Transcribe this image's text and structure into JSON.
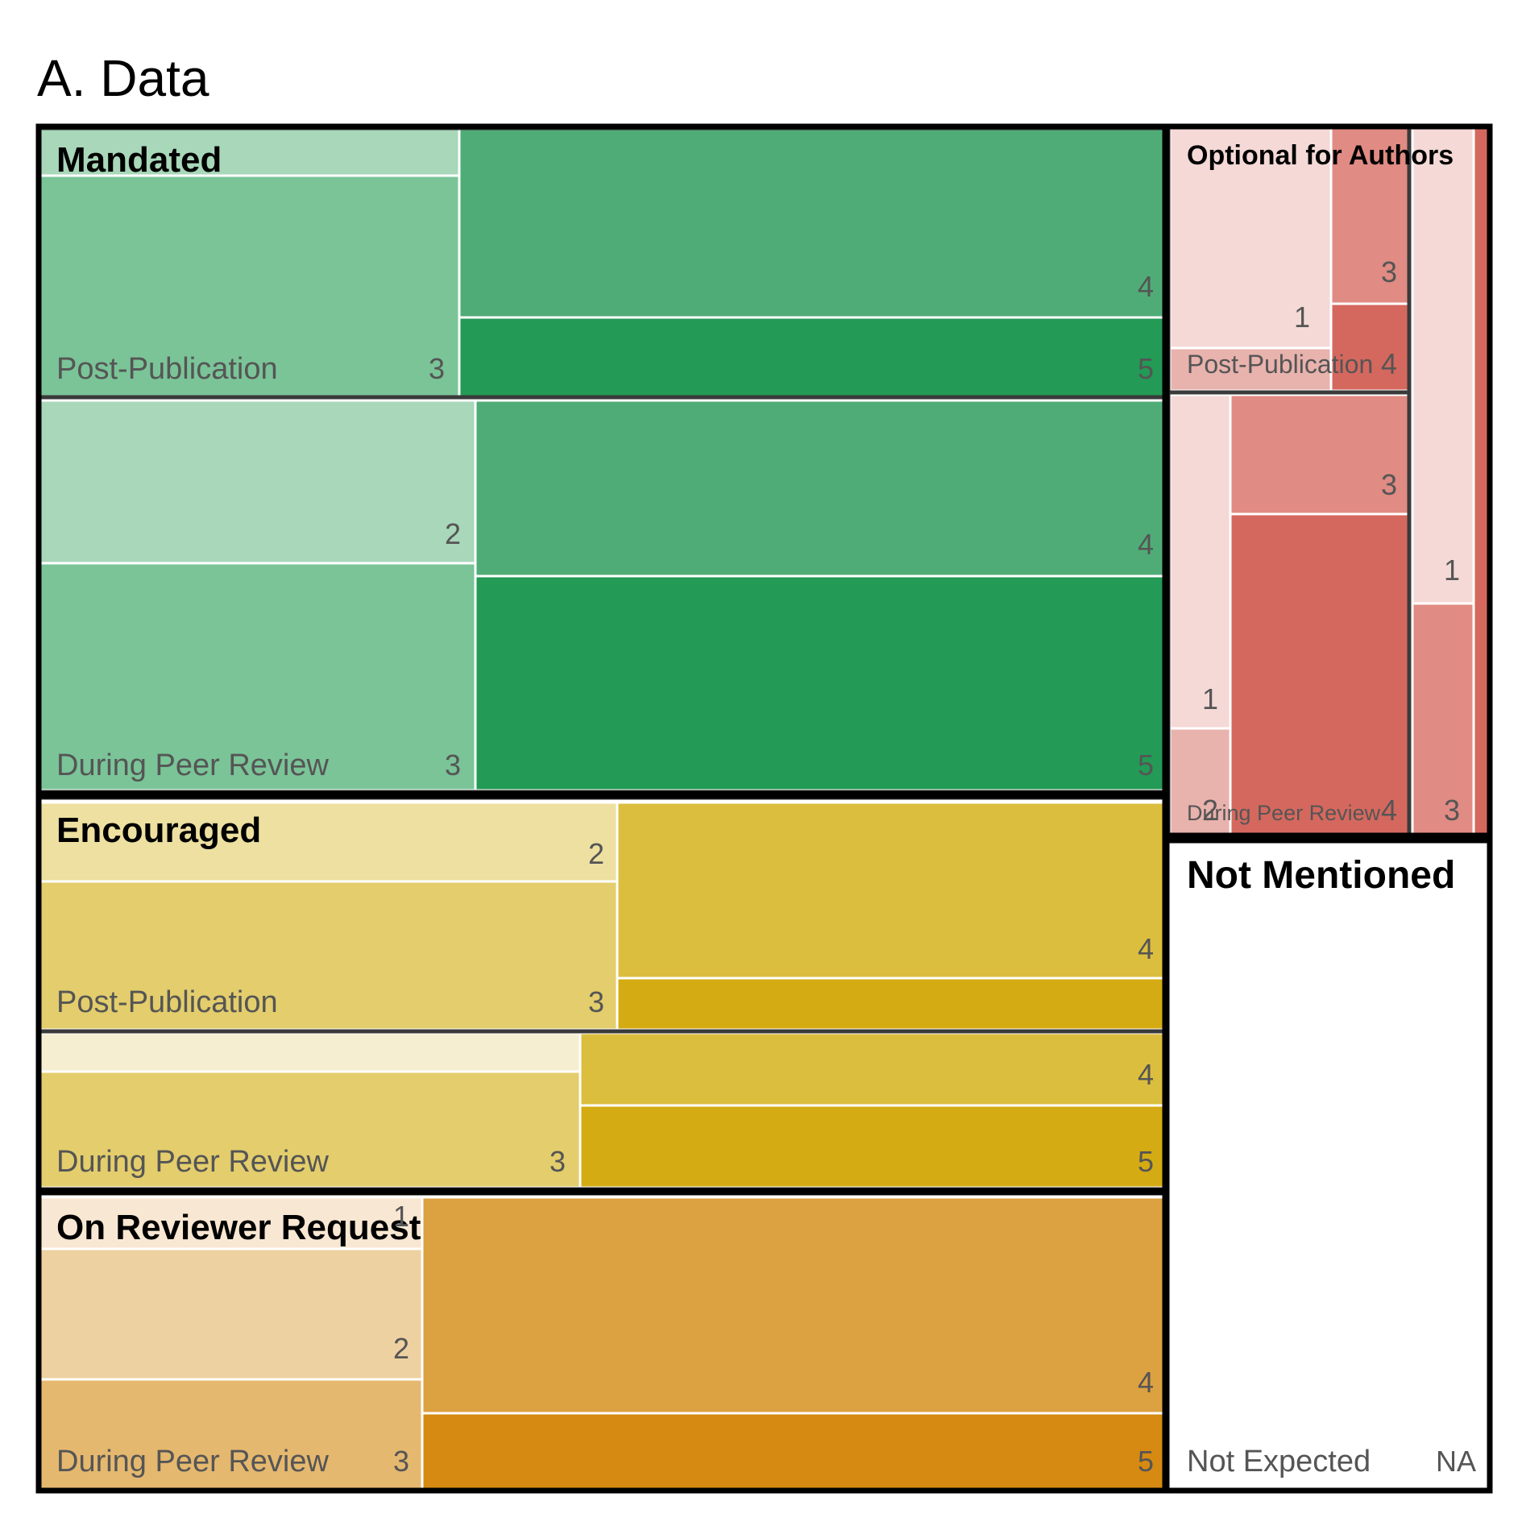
{
  "title": "A. Data",
  "chart_data": {
    "type": "treemap",
    "title": "A. Data",
    "groups": [
      {
        "name": "Mandated",
        "color": "#239a55",
        "subgroups": [
          {
            "name": "Post-Publication",
            "score_labels": [
              {
                "score": "3",
                "shown": true
              },
              {
                "score": "4",
                "shown": true
              },
              {
                "score": "5",
                "shown": true
              }
            ]
          },
          {
            "name": "During Peer Review",
            "score_labels": [
              {
                "score": "2",
                "shown": true
              },
              {
                "score": "3",
                "shown": true
              },
              {
                "score": "4",
                "shown": true
              },
              {
                "score": "5",
                "shown": true
              }
            ]
          }
        ]
      },
      {
        "name": "Encouraged",
        "color": "#d4ab12",
        "subgroups": [
          {
            "name": "Post-Publication",
            "score_labels": [
              {
                "score": "2",
                "shown": true
              },
              {
                "score": "3",
                "shown": true
              },
              {
                "score": "4",
                "shown": true
              }
            ]
          },
          {
            "name": "During Peer Review",
            "score_labels": [
              {
                "score": "3",
                "shown": true
              },
              {
                "score": "4",
                "shown": true
              },
              {
                "score": "5",
                "shown": true
              }
            ]
          }
        ]
      },
      {
        "name": "On Reviewer Request",
        "color": "#d68a12",
        "subgroups": [
          {
            "name": "During Peer Review",
            "score_labels": [
              {
                "score": "1",
                "shown": true
              },
              {
                "score": "2",
                "shown": true
              },
              {
                "score": "3",
                "shown": true
              },
              {
                "score": "4",
                "shown": true
              },
              {
                "score": "5",
                "shown": true
              }
            ]
          }
        ]
      },
      {
        "name": "Optional for Authors",
        "color": "#d5685e",
        "subgroups": [
          {
            "name": "Post-Publication",
            "score_labels": [
              "1",
              "3",
              "4"
            ]
          },
          {
            "name": "During Peer Review",
            "score_labels": [
              "1",
              "2",
              "3",
              "4"
            ]
          },
          {
            "name": "",
            "score_labels": [
              "1",
              "3"
            ]
          }
        ]
      },
      {
        "name": "Not Mentioned",
        "color": "#ffffff",
        "subgroups": [
          {
            "name": "Not Expected",
            "score_labels": [
              "NA"
            ]
          }
        ]
      }
    ]
  }
}
